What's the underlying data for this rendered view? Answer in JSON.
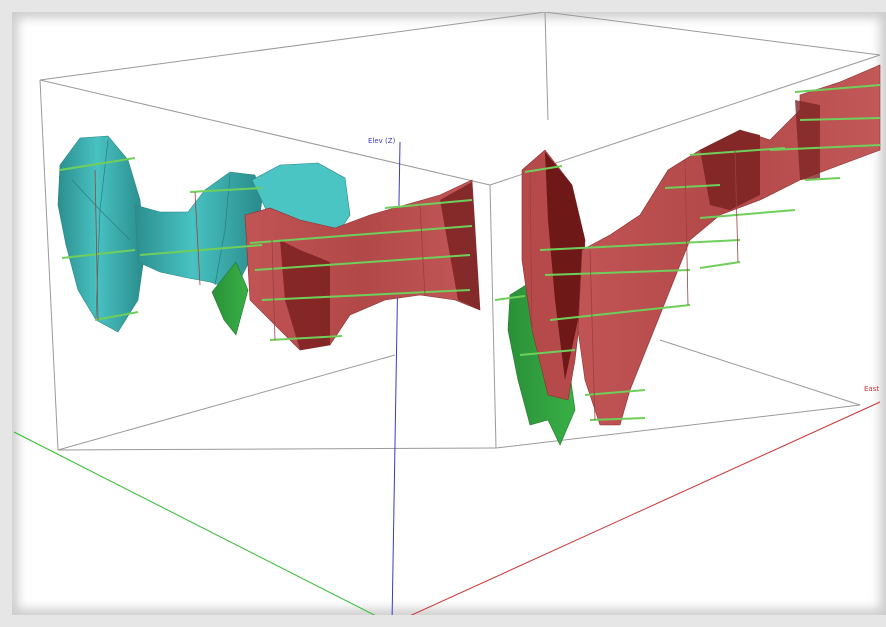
{
  "view": {
    "elevation_axis_label": "Elev (Z)",
    "east_axis_label": "East",
    "colors": {
      "elevation_axis": "#3a3ac8",
      "east_axis": "#cc3333",
      "north_axis": "#33bb33",
      "box_edge": "#9a9a9a",
      "cyan_body": "#3fb3b3",
      "red_body": "#b84a4a",
      "green_body": "#2e9e3e",
      "section_line": "#6fcf5a"
    }
  }
}
